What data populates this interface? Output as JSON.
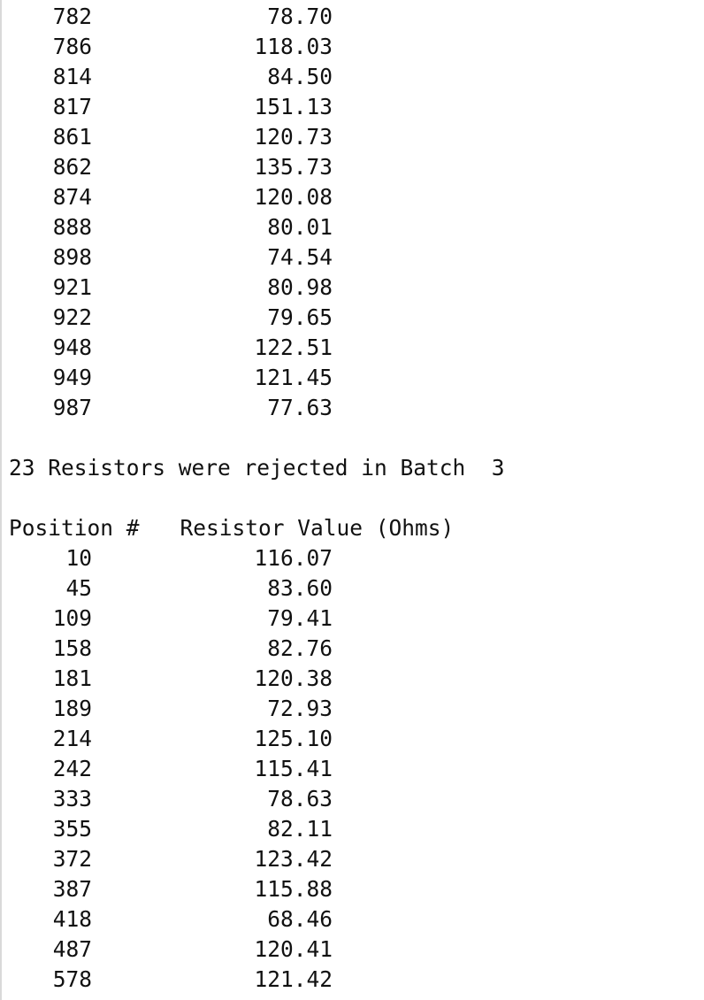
{
  "batch2_tail": [
    {
      "position": "782",
      "value": "78.70"
    },
    {
      "position": "786",
      "value": "118.03"
    },
    {
      "position": "814",
      "value": "84.50"
    },
    {
      "position": "817",
      "value": "151.13"
    },
    {
      "position": "861",
      "value": "120.73"
    },
    {
      "position": "862",
      "value": "135.73"
    },
    {
      "position": "874",
      "value": "120.08"
    },
    {
      "position": "888",
      "value": "80.01"
    },
    {
      "position": "898",
      "value": "74.54"
    },
    {
      "position": "921",
      "value": "80.98"
    },
    {
      "position": "922",
      "value": "79.65"
    },
    {
      "position": "948",
      "value": "122.51"
    },
    {
      "position": "949",
      "value": "121.45"
    },
    {
      "position": "987",
      "value": "77.63"
    }
  ],
  "batch3": {
    "summary": "23 Resistors were rejected in Batch  3",
    "header_position": "Position #",
    "header_value": "Resistor Value (Ohms)",
    "rows": [
      {
        "position": "10",
        "value": "116.07"
      },
      {
        "position": "45",
        "value": "83.60"
      },
      {
        "position": "109",
        "value": "79.41"
      },
      {
        "position": "158",
        "value": "82.76"
      },
      {
        "position": "181",
        "value": "120.38"
      },
      {
        "position": "189",
        "value": "72.93"
      },
      {
        "position": "214",
        "value": "125.10"
      },
      {
        "position": "242",
        "value": "115.41"
      },
      {
        "position": "333",
        "value": "78.63"
      },
      {
        "position": "355",
        "value": "82.11"
      },
      {
        "position": "372",
        "value": "123.42"
      },
      {
        "position": "387",
        "value": "115.88"
      },
      {
        "position": "418",
        "value": "68.46"
      },
      {
        "position": "487",
        "value": "120.41"
      },
      {
        "position": "578",
        "value": "121.42"
      }
    ]
  }
}
